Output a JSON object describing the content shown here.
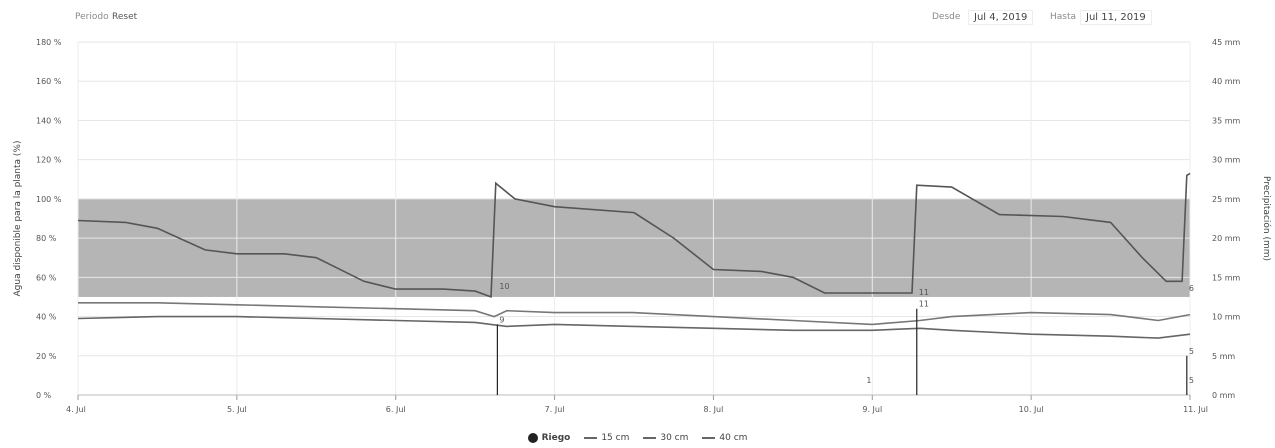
{
  "toolbar": {
    "period_label": "Periodo",
    "reset_label": "Reset",
    "from_label": "Desde",
    "from_value": "Jul 4, 2019",
    "to_label": "Hasta",
    "to_value": "Jul 11, 2019"
  },
  "legend": {
    "riego": "Riego",
    "cm15": "15 cm",
    "cm30": "30 cm",
    "cm40": "40 cm"
  },
  "colors": {
    "band": "#a8a8a8",
    "line15": "#555555",
    "line30": "#777777",
    "line40": "#666666",
    "riego": "#222222"
  },
  "chart_data": {
    "type": "line",
    "title": "",
    "xlabel": "",
    "ylabel": "Agua disponible para la planta (%)",
    "y2label": "Precipitación (mm)",
    "x_range": [
      4.0,
      11.0
    ],
    "ylim": [
      0,
      180
    ],
    "y2lim": [
      0,
      45
    ],
    "x_tick_values": [
      4,
      5,
      6,
      7,
      8,
      9,
      10,
      11
    ],
    "x_tick_labels": [
      "4. Jul",
      "5. Jul",
      "6. Jul",
      "7. Jul",
      "8. Jul",
      "9. Jul",
      "10. Jul",
      "11. Jul"
    ],
    "y_tick_values": [
      0,
      20,
      40,
      60,
      80,
      100,
      120,
      140,
      160,
      180
    ],
    "y_tick_labels": [
      "0 %",
      "20 %",
      "40 %",
      "60 %",
      "80 %",
      "100 %",
      "120 %",
      "140 %",
      "160 %",
      "180 %"
    ],
    "y2_tick_values": [
      0,
      5,
      10,
      15,
      20,
      25,
      30,
      35,
      40,
      45
    ],
    "y2_tick_labels": [
      "0 mm",
      "5 mm",
      "10 mm",
      "15 mm",
      "20 mm",
      "25 mm",
      "30 mm",
      "35 mm",
      "40 mm",
      "45 mm"
    ],
    "grid": true,
    "legend_position": "bottom",
    "band": {
      "from": 50,
      "to": 100
    },
    "series": [
      {
        "name": "15 cm",
        "points": [
          [
            4.0,
            89
          ],
          [
            4.3,
            88
          ],
          [
            4.5,
            85
          ],
          [
            4.8,
            74
          ],
          [
            5.0,
            72
          ],
          [
            5.3,
            72
          ],
          [
            5.5,
            70
          ],
          [
            5.8,
            58
          ],
          [
            6.0,
            54
          ],
          [
            6.3,
            54
          ],
          [
            6.5,
            53
          ],
          [
            6.6,
            50
          ],
          [
            6.63,
            108
          ],
          [
            6.75,
            100
          ],
          [
            7.0,
            96
          ],
          [
            7.5,
            93
          ],
          [
            7.75,
            80
          ],
          [
            8.0,
            64
          ],
          [
            8.3,
            63
          ],
          [
            8.5,
            60
          ],
          [
            8.7,
            52
          ],
          [
            9.0,
            52
          ],
          [
            9.25,
            52
          ],
          [
            9.28,
            107
          ],
          [
            9.5,
            106
          ],
          [
            9.8,
            92
          ],
          [
            10.2,
            91
          ],
          [
            10.5,
            88
          ],
          [
            10.7,
            70
          ],
          [
            10.85,
            58
          ],
          [
            10.95,
            58
          ],
          [
            10.98,
            112
          ],
          [
            11.0,
            113
          ]
        ]
      },
      {
        "name": "30 cm",
        "points": [
          [
            4.0,
            47
          ],
          [
            4.5,
            47
          ],
          [
            5.0,
            46
          ],
          [
            5.5,
            45
          ],
          [
            6.0,
            44
          ],
          [
            6.5,
            43
          ],
          [
            6.62,
            40
          ],
          [
            6.7,
            43
          ],
          [
            7.0,
            42
          ],
          [
            7.5,
            42
          ],
          [
            8.0,
            40
          ],
          [
            8.5,
            38
          ],
          [
            9.0,
            36
          ],
          [
            9.3,
            38
          ],
          [
            9.5,
            40
          ],
          [
            10.0,
            42
          ],
          [
            10.5,
            41
          ],
          [
            10.8,
            38
          ],
          [
            11.0,
            41
          ]
        ]
      },
      {
        "name": "40 cm",
        "points": [
          [
            4.0,
            39
          ],
          [
            4.5,
            40
          ],
          [
            5.0,
            40
          ],
          [
            5.5,
            39
          ],
          [
            6.0,
            38
          ],
          [
            6.5,
            37
          ],
          [
            6.7,
            35
          ],
          [
            7.0,
            36
          ],
          [
            7.5,
            35
          ],
          [
            8.0,
            34
          ],
          [
            8.5,
            33
          ],
          [
            9.0,
            33
          ],
          [
            9.3,
            34
          ],
          [
            9.5,
            33
          ],
          [
            10.0,
            31
          ],
          [
            10.5,
            30
          ],
          [
            10.8,
            29
          ],
          [
            11.0,
            31
          ]
        ]
      }
    ],
    "riego": [
      {
        "x": 6.64,
        "value": 9,
        "label": "9"
      },
      {
        "x": 9.28,
        "value": 11,
        "label": "11"
      },
      {
        "x": 10.98,
        "value": 5,
        "label": "5"
      }
    ],
    "annotations": [
      {
        "x": 6.64,
        "y": 53,
        "text": "10"
      },
      {
        "x": 9.28,
        "y": 50,
        "text": "11"
      },
      {
        "x": 8.95,
        "y": 5,
        "text": "1"
      },
      {
        "x": 10.98,
        "y": 52,
        "text": "6"
      },
      {
        "x": 10.98,
        "y": 5,
        "text": "5"
      }
    ]
  }
}
